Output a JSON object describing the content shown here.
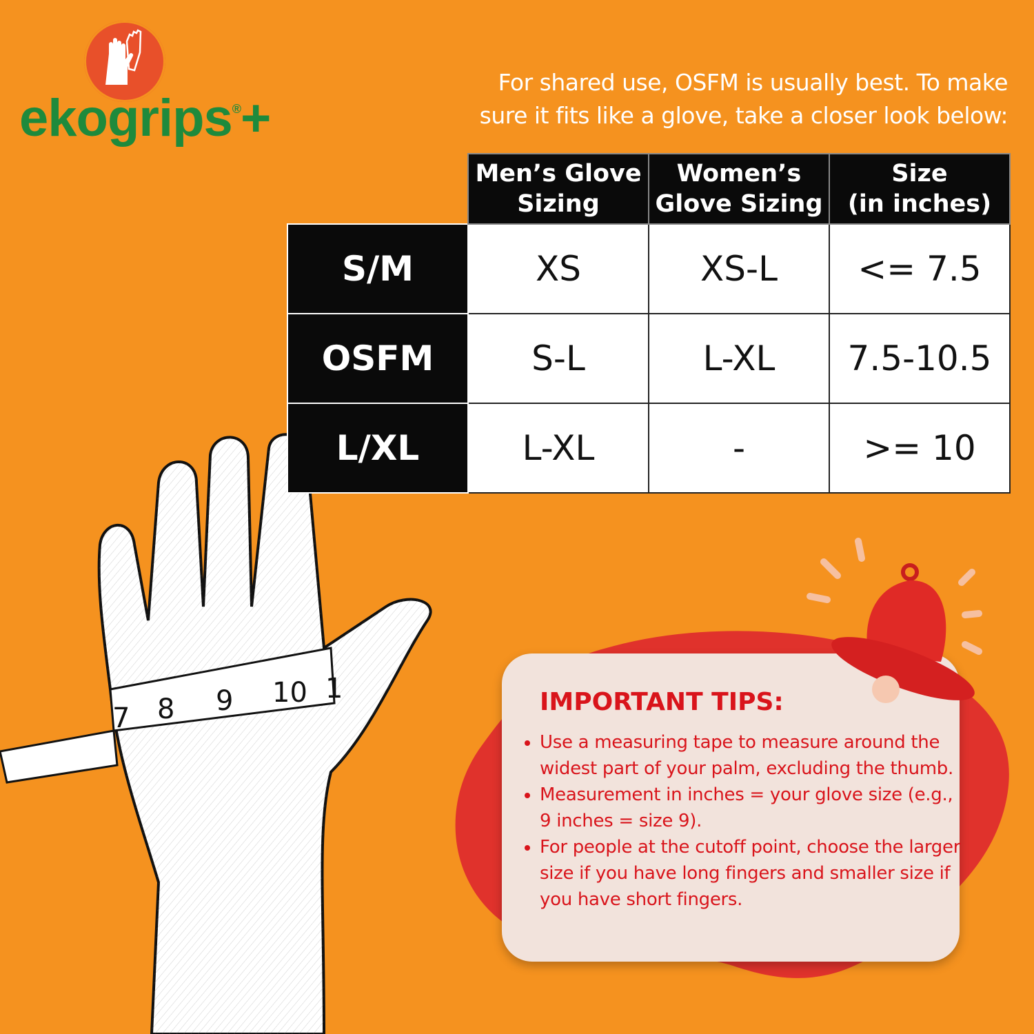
{
  "brand": {
    "name": "ekogrips",
    "registered": "®",
    "plus": "+",
    "logo_icon": "gloves-icon",
    "colors": {
      "green": "#1e8a3c",
      "circle": "#e8502a"
    }
  },
  "intro": {
    "line1": "For shared use, OSFM is usually best. To make",
    "line2": "sure it fits like a glove, take a closer look below:"
  },
  "table": {
    "headers": [
      "Men’s Glove Sizing",
      "Women’s Glove Sizing",
      "Size (in inches)"
    ],
    "header_lines": [
      [
        "Men’s Glove",
        "Sizing"
      ],
      [
        "Women’s",
        "Glove Sizing"
      ],
      [
        "Size",
        "(in inches)"
      ]
    ],
    "rows": [
      {
        "size": "S/M",
        "men": "XS",
        "women": "XS-L",
        "inches": "<= 7.5"
      },
      {
        "size": "OSFM",
        "men": "S-L",
        "women": "L-XL",
        "inches": "7.5-10.5"
      },
      {
        "size": "L/XL",
        "men": "L-XL",
        "women": "-",
        "inches": ">= 10"
      }
    ]
  },
  "illustration": {
    "tape_numbers": [
      "7",
      "8",
      "9",
      "10",
      "1"
    ]
  },
  "tips": {
    "title": "IMPORTANT TIPS:",
    "items": [
      "Use a measuring tape to measure around the widest part of your palm, excluding the thumb.",
      "Measurement in inches = your glove size (e.g., 9 inches = size 9).",
      "For people at the cutoff point, choose the larger size if you have long fingers and smaller size if you have short fingers."
    ],
    "color": "#d9141b",
    "icon": "bell-icon"
  },
  "colors": {
    "background": "#f5921f",
    "table_dark": "#0a0a0a",
    "blob": "#e0322c"
  }
}
